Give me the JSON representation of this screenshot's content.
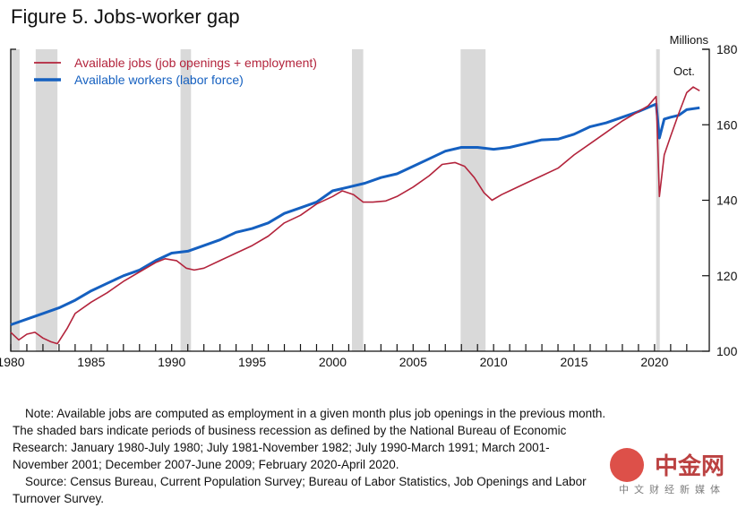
{
  "title": "Figure 5. Jobs-worker gap",
  "chart_data": {
    "type": "line",
    "title": "Figure 5. Jobs-worker gap",
    "ylabel": "Millions",
    "ylim": [
      100,
      180
    ],
    "xlim": [
      1980,
      2023.4
    ],
    "yticks": [
      100,
      120,
      140,
      160,
      180
    ],
    "xtick_labels": [
      "1980",
      "1985",
      "1990",
      "1995",
      "2000",
      "2005",
      "2010",
      "2015",
      "2020"
    ],
    "annotation": "Oct.",
    "recessions": [
      [
        1980.0,
        1980.55
      ],
      [
        1981.55,
        1982.9
      ],
      [
        1990.55,
        1991.2
      ],
      [
        2001.2,
        2001.9
      ],
      [
        2007.95,
        2009.5
      ],
      [
        2020.1,
        2020.3
      ]
    ],
    "series": [
      {
        "name": "Available jobs (job openings + employment)",
        "color": "#b3243c",
        "x": [
          1980,
          1980.5,
          1981,
          1981.5,
          1982,
          1982.5,
          1982.9,
          1983.5,
          1984,
          1985,
          1986,
          1987,
          1988,
          1989,
          1989.6,
          1990.3,
          1990.9,
          1991.4,
          1992,
          1993,
          1994,
          1995,
          1996,
          1997,
          1998,
          1999,
          2000,
          2000.6,
          2001.3,
          2001.9,
          2002.5,
          2003.3,
          2004,
          2005,
          2006,
          2006.8,
          2007.6,
          2008.2,
          2008.8,
          2009.4,
          2009.9,
          2010.5,
          2011,
          2012,
          2013,
          2014,
          2015,
          2016,
          2017,
          2018,
          2019,
          2019.6,
          2020.1,
          2020.3,
          2020.6,
          2021,
          2021.5,
          2022,
          2022.4,
          2022.8
        ],
        "y": [
          105,
          103,
          104.5,
          105,
          103.5,
          102.5,
          102,
          106,
          110,
          113,
          115.5,
          118.5,
          121,
          123.5,
          124.5,
          124,
          122,
          121.5,
          122,
          124,
          126,
          128,
          130.5,
          134,
          136,
          139,
          141,
          142.5,
          141.5,
          139.5,
          139.5,
          139.8,
          141,
          143.5,
          146.5,
          149.5,
          150,
          149,
          146,
          142,
          140,
          141.5,
          142.5,
          144.5,
          146.5,
          148.5,
          152,
          155,
          158,
          161,
          163.5,
          165,
          167.5,
          141,
          152,
          157,
          163,
          168.5,
          170,
          169
        ]
      },
      {
        "name": "Available workers (labor force)",
        "color": "#1560c0",
        "x": [
          1980,
          1981,
          1982,
          1983,
          1984,
          1985,
          1986,
          1987,
          1988,
          1989,
          1990,
          1991,
          1992,
          1993,
          1994,
          1995,
          1996,
          1997,
          1998,
          1999,
          2000,
          2001,
          2002,
          2003,
          2004,
          2005,
          2006,
          2007,
          2008,
          2009,
          2010,
          2011,
          2012,
          2013,
          2014,
          2015,
          2016,
          2017,
          2018,
          2019,
          2020.1,
          2020.3,
          2020.6,
          2021,
          2021.5,
          2022,
          2022.8
        ],
        "y": [
          107,
          108.5,
          110,
          111.5,
          113.5,
          116,
          118,
          120,
          121.5,
          124,
          126,
          126.5,
          128,
          129.5,
          131.5,
          132.5,
          134,
          136.5,
          138,
          139.5,
          142.5,
          143.5,
          144.5,
          146,
          147,
          149,
          151,
          153,
          154,
          154,
          153.5,
          154,
          155,
          156,
          156.2,
          157.5,
          159.5,
          160.5,
          162,
          163.5,
          165.5,
          156.5,
          161.5,
          162,
          162.5,
          164,
          164.5
        ]
      }
    ]
  },
  "notes": [
    "Note: Available jobs are computed as employment in a given month plus job openings in the previous month.",
    "The shaded bars indicate periods of business recession as defined by the National Bureau of Economic",
    "Research: January 1980-July 1980; July 1981-November 1982; July 1990-March 1991; March 2001-",
    "November 2001; December 2007-June 2009; February 2020-April 2020.",
    "Source: Census Bureau, Current Population Survey; Bureau of Labor Statistics, Job Openings and Labor",
    "Turnover Survey."
  ],
  "watermark": {
    "logo": "中金网",
    "tagline": "中文财经新媒体"
  }
}
